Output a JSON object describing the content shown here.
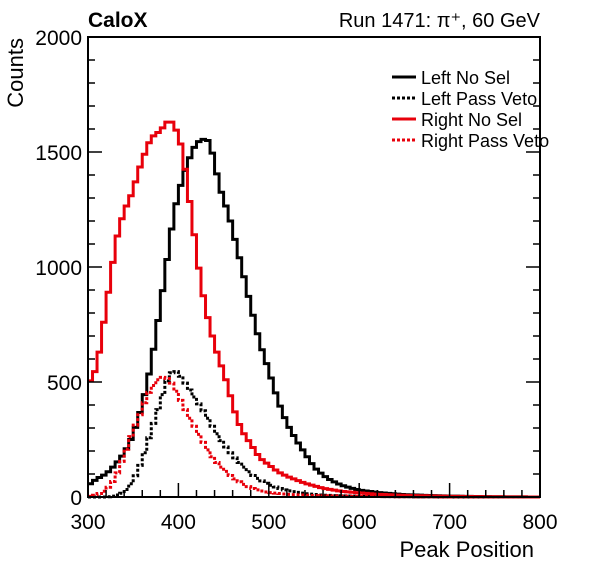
{
  "chart_data": {
    "type": "line",
    "style": "step-histogram",
    "header_left": "CaloX",
    "header_right": "Run 1471:   π⁺, 60 GeV",
    "xlabel": "Peak Position",
    "ylabel": "Counts",
    "xlim": [
      300,
      800
    ],
    "ylim": [
      0,
      2000
    ],
    "x_ticks": [
      300,
      400,
      500,
      600,
      700,
      800
    ],
    "y_ticks": [
      0,
      500,
      1000,
      1500,
      2000
    ],
    "legend_position": "top-right",
    "bin_width": 5,
    "series": [
      {
        "name": "Left No Sel",
        "color": "#000000",
        "dashed": false,
        "points": [
          [
            300,
            50
          ],
          [
            310,
            80
          ],
          [
            320,
            100
          ],
          [
            330,
            140
          ],
          [
            340,
            190
          ],
          [
            350,
            270
          ],
          [
            360,
            400
          ],
          [
            370,
            580
          ],
          [
            380,
            830
          ],
          [
            390,
            1100
          ],
          [
            395,
            1230
          ],
          [
            400,
            1320
          ],
          [
            405,
            1390
          ],
          [
            410,
            1450
          ],
          [
            415,
            1500
          ],
          [
            420,
            1540
          ],
          [
            425,
            1550
          ],
          [
            430,
            1560
          ],
          [
            435,
            1540
          ],
          [
            440,
            1450
          ],
          [
            445,
            1360
          ],
          [
            450,
            1290
          ],
          [
            455,
            1240
          ],
          [
            460,
            1160
          ],
          [
            470,
            1000
          ],
          [
            480,
            830
          ],
          [
            490,
            670
          ],
          [
            500,
            550
          ],
          [
            510,
            420
          ],
          [
            520,
            320
          ],
          [
            530,
            250
          ],
          [
            540,
            190
          ],
          [
            550,
            130
          ],
          [
            560,
            95
          ],
          [
            570,
            70
          ],
          [
            580,
            52
          ],
          [
            590,
            40
          ],
          [
            600,
            30
          ],
          [
            620,
            20
          ],
          [
            650,
            10
          ],
          [
            700,
            4
          ],
          [
            750,
            1
          ],
          [
            800,
            0
          ]
        ]
      },
      {
        "name": "Left Pass Veto",
        "color": "#000000",
        "dashed": true,
        "points": [
          [
            300,
            0
          ],
          [
            320,
            0
          ],
          [
            330,
            5
          ],
          [
            340,
            20
          ],
          [
            350,
            70
          ],
          [
            360,
            160
          ],
          [
            370,
            290
          ],
          [
            380,
            410
          ],
          [
            385,
            480
          ],
          [
            390,
            530
          ],
          [
            395,
            550
          ],
          [
            400,
            540
          ],
          [
            405,
            510
          ],
          [
            410,
            480
          ],
          [
            420,
            420
          ],
          [
            430,
            360
          ],
          [
            440,
            290
          ],
          [
            450,
            230
          ],
          [
            460,
            180
          ],
          [
            470,
            140
          ],
          [
            480,
            100
          ],
          [
            490,
            75
          ],
          [
            500,
            55
          ],
          [
            510,
            40
          ],
          [
            520,
            28
          ],
          [
            540,
            15
          ],
          [
            560,
            8
          ],
          [
            580,
            5
          ],
          [
            600,
            3
          ],
          [
            650,
            1
          ],
          [
            700,
            0
          ],
          [
            800,
            0
          ]
        ]
      },
      {
        "name": "Right No Sel",
        "color": "#e8000b",
        "dashed": false,
        "points": [
          [
            300,
            490
          ],
          [
            305,
            520
          ],
          [
            310,
            570
          ],
          [
            315,
            690
          ],
          [
            320,
            830
          ],
          [
            325,
            950
          ],
          [
            330,
            1090
          ],
          [
            335,
            1180
          ],
          [
            340,
            1240
          ],
          [
            345,
            1290
          ],
          [
            350,
            1330
          ],
          [
            355,
            1410
          ],
          [
            360,
            1460
          ],
          [
            365,
            1520
          ],
          [
            370,
            1560
          ],
          [
            375,
            1580
          ],
          [
            380,
            1590
          ],
          [
            385,
            1620
          ],
          [
            390,
            1640
          ],
          [
            395,
            1620
          ],
          [
            400,
            1570
          ],
          [
            405,
            1500
          ],
          [
            410,
            1350
          ],
          [
            415,
            1220
          ],
          [
            420,
            1060
          ],
          [
            425,
            930
          ],
          [
            430,
            820
          ],
          [
            435,
            740
          ],
          [
            440,
            660
          ],
          [
            445,
            600
          ],
          [
            450,
            540
          ],
          [
            455,
            480
          ],
          [
            460,
            400
          ],
          [
            465,
            340
          ],
          [
            470,
            290
          ],
          [
            480,
            230
          ],
          [
            490,
            170
          ],
          [
            500,
            140
          ],
          [
            510,
            110
          ],
          [
            520,
            90
          ],
          [
            540,
            60
          ],
          [
            560,
            38
          ],
          [
            580,
            25
          ],
          [
            600,
            18
          ],
          [
            620,
            12
          ],
          [
            650,
            7
          ],
          [
            700,
            3
          ],
          [
            750,
            1
          ],
          [
            800,
            0
          ]
        ]
      },
      {
        "name": "Right Pass Veto",
        "color": "#e8000b",
        "dashed": true,
        "points": [
          [
            300,
            0
          ],
          [
            310,
            10
          ],
          [
            320,
            30
          ],
          [
            330,
            80
          ],
          [
            340,
            180
          ],
          [
            350,
            290
          ],
          [
            360,
            380
          ],
          [
            365,
            440
          ],
          [
            370,
            470
          ],
          [
            375,
            500
          ],
          [
            380,
            520
          ],
          [
            385,
            520
          ],
          [
            390,
            510
          ],
          [
            395,
            480
          ],
          [
            400,
            440
          ],
          [
            410,
            360
          ],
          [
            420,
            290
          ],
          [
            430,
            220
          ],
          [
            440,
            160
          ],
          [
            450,
            120
          ],
          [
            460,
            85
          ],
          [
            470,
            60
          ],
          [
            480,
            40
          ],
          [
            490,
            28
          ],
          [
            500,
            20
          ],
          [
            520,
            12
          ],
          [
            550,
            6
          ],
          [
            600,
            3
          ],
          [
            650,
            1
          ],
          [
            700,
            0
          ],
          [
            800,
            0
          ]
        ]
      }
    ]
  }
}
